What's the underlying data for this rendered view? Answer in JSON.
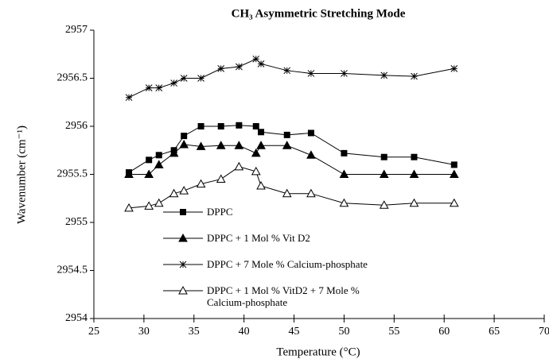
{
  "chart_data": {
    "type": "line",
    "title": "CH₃ Asymmetric Stretching Mode",
    "xlabel": "Temperature (°C)",
    "ylabel": "Wavenumber (cm⁻¹)",
    "x": [
      28.5,
      30.5,
      31.5,
      33,
      34,
      35.7,
      37.7,
      39.5,
      41.2,
      41.7,
      44.3,
      46.7,
      50,
      54,
      57,
      61
    ],
    "series": [
      {
        "name": "DPPC",
        "color": "#000000",
        "marker": "square",
        "values": [
          2955.52,
          2955.65,
          2955.7,
          2955.75,
          2955.9,
          2956.0,
          2956.0,
          2956.01,
          2956.0,
          2955.94,
          2955.91,
          2955.93,
          2955.72,
          2955.68,
          2955.68,
          2955.6
        ]
      },
      {
        "name": "DPPC + 1 Mol % Vit D2",
        "color": "#000000",
        "marker": "triangle",
        "values": [
          2955.5,
          2955.5,
          2955.6,
          2955.72,
          2955.81,
          2955.79,
          2955.8,
          2955.8,
          2955.72,
          2955.8,
          2955.8,
          2955.7,
          2955.5,
          2955.5,
          2955.5,
          2955.5
        ]
      },
      {
        "name": "DPPC + 7 Mole % Calcium-phosphate",
        "color": "#000000",
        "marker": "asterisk",
        "values": [
          2956.3,
          2956.4,
          2956.4,
          2956.45,
          2956.5,
          2956.5,
          2956.6,
          2956.62,
          2956.7,
          2956.65,
          2956.58,
          2956.55,
          2956.55,
          2956.53,
          2956.52,
          2956.6
        ]
      },
      {
        "name": "DPPC + 1 Mol % VitD2 + 7 Mole % Calcium-phosphate",
        "color": "#000000",
        "marker": "open-triangle",
        "values": [
          2955.15,
          2955.17,
          2955.2,
          2955.3,
          2955.33,
          2955.4,
          2955.45,
          2955.58,
          2955.53,
          2955.38,
          2955.3,
          2955.3,
          2955.2,
          2955.18,
          2955.2,
          2955.2
        ]
      }
    ],
    "xlim": [
      25,
      70
    ],
    "xticks": [
      25,
      30,
      35,
      40,
      45,
      50,
      55,
      60,
      65,
      70
    ],
    "ylim": [
      2954,
      2957
    ],
    "yticks": [
      2954,
      2954.5,
      2955,
      2955.5,
      2956,
      2956.5,
      2957
    ],
    "grid": false
  }
}
